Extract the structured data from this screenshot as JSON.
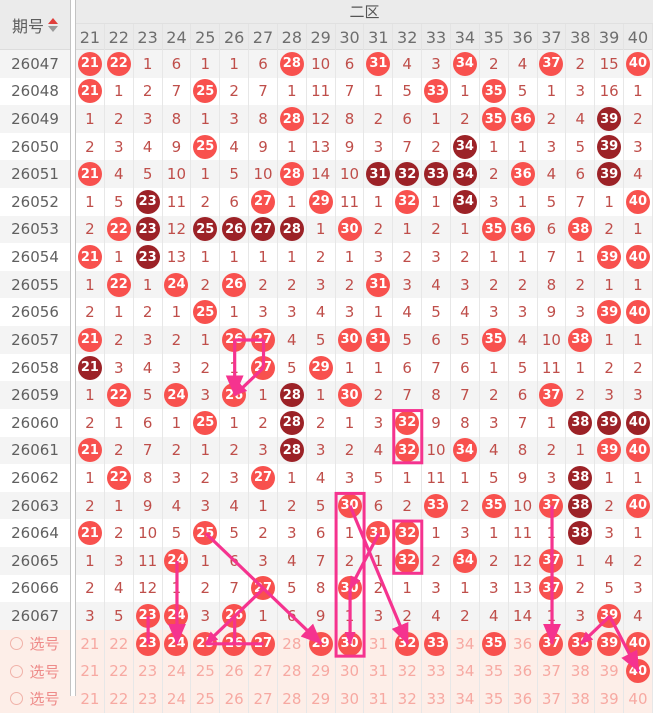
{
  "header": {
    "issue_col_label": "期号",
    "zone_label": "二区",
    "columns": [
      "21",
      "22",
      "23",
      "24",
      "25",
      "26",
      "27",
      "28",
      "29",
      "30",
      "31",
      "32",
      "33",
      "34",
      "35",
      "36",
      "37",
      "38",
      "39",
      "40"
    ]
  },
  "legend_note": "R=hit ball (bright red), D=repeat hot ball (dark red), S=selected pick ball, plain=miss count",
  "rows": [
    {
      "issue": "26047",
      "cells": [
        "R21",
        "R22",
        "1",
        "6",
        "1",
        "1",
        "6",
        "R28",
        "10",
        "6",
        "R31",
        "4",
        "3",
        "R34",
        "2",
        "4",
        "R37",
        "2",
        "15",
        "R40"
      ]
    },
    {
      "issue": "26048",
      "cells": [
        "R21",
        "1",
        "2",
        "7",
        "R25",
        "2",
        "7",
        "1",
        "11",
        "7",
        "1",
        "5",
        "R33",
        "1",
        "R35",
        "5",
        "1",
        "3",
        "16",
        "1"
      ]
    },
    {
      "issue": "26049",
      "cells": [
        "1",
        "2",
        "3",
        "8",
        "1",
        "3",
        "8",
        "R28",
        "12",
        "8",
        "2",
        "6",
        "1",
        "2",
        "R35",
        "R36",
        "2",
        "4",
        "D39",
        "2"
      ]
    },
    {
      "issue": "26050",
      "cells": [
        "2",
        "3",
        "4",
        "9",
        "R25",
        "4",
        "9",
        "1",
        "13",
        "9",
        "3",
        "7",
        "2",
        "D34",
        "1",
        "1",
        "3",
        "5",
        "D39",
        "3"
      ]
    },
    {
      "issue": "26051",
      "cells": [
        "R21",
        "4",
        "5",
        "10",
        "1",
        "5",
        "10",
        "R28",
        "14",
        "10",
        "D31",
        "D32",
        "D33",
        "D34",
        "2",
        "R36",
        "4",
        "6",
        "D39",
        "4"
      ]
    },
    {
      "issue": "26052",
      "cells": [
        "1",
        "5",
        "D23",
        "11",
        "2",
        "6",
        "R27",
        "1",
        "R29",
        "11",
        "1",
        "R32",
        "1",
        "D34",
        "3",
        "1",
        "5",
        "7",
        "1",
        "R40"
      ]
    },
    {
      "issue": "26053",
      "cells": [
        "2",
        "R22",
        "D23",
        "12",
        "D25",
        "D26",
        "D27",
        "D28",
        "1",
        "R30",
        "2",
        "1",
        "2",
        "1",
        "R35",
        "R36",
        "6",
        "R38",
        "2",
        "1"
      ]
    },
    {
      "issue": "26054",
      "cells": [
        "R21",
        "1",
        "D23",
        "13",
        "1",
        "1",
        "1",
        "1",
        "2",
        "1",
        "3",
        "2",
        "3",
        "2",
        "1",
        "1",
        "7",
        "1",
        "R39",
        "R40"
      ]
    },
    {
      "issue": "26055",
      "cells": [
        "1",
        "R22",
        "1",
        "R24",
        "2",
        "R26",
        "2",
        "2",
        "3",
        "2",
        "R31",
        "3",
        "4",
        "3",
        "2",
        "2",
        "8",
        "2",
        "1",
        "1"
      ]
    },
    {
      "issue": "26056",
      "cells": [
        "2",
        "1",
        "2",
        "1",
        "R25",
        "1",
        "3",
        "3",
        "4",
        "3",
        "1",
        "4",
        "5",
        "4",
        "3",
        "3",
        "9",
        "3",
        "R39",
        "R40"
      ]
    },
    {
      "issue": "26057",
      "cells": [
        "R21",
        "2",
        "3",
        "2",
        "1",
        "R26",
        "R27",
        "4",
        "5",
        "R30",
        "R31",
        "5",
        "6",
        "5",
        "R35",
        "4",
        "10",
        "R38",
        "1",
        "1"
      ]
    },
    {
      "issue": "26058",
      "cells": [
        "D21",
        "3",
        "4",
        "3",
        "2",
        "1",
        "R27",
        "5",
        "R29",
        "1",
        "1",
        "6",
        "7",
        "6",
        "1",
        "5",
        "11",
        "1",
        "2",
        "2"
      ]
    },
    {
      "issue": "26059",
      "cells": [
        "1",
        "R22",
        "5",
        "R24",
        "3",
        "R26",
        "1",
        "D28",
        "1",
        "R30",
        "2",
        "7",
        "8",
        "7",
        "2",
        "6",
        "R37",
        "2",
        "3",
        "3"
      ]
    },
    {
      "issue": "26060",
      "cells": [
        "2",
        "1",
        "6",
        "1",
        "R25",
        "1",
        "2",
        "D28",
        "2",
        "1",
        "3",
        "R32",
        "9",
        "8",
        "3",
        "7",
        "1",
        "D38",
        "D39",
        "D40"
      ]
    },
    {
      "issue": "26061",
      "cells": [
        "R21",
        "2",
        "7",
        "2",
        "1",
        "2",
        "3",
        "D28",
        "3",
        "2",
        "4",
        "R32",
        "10",
        "R34",
        "4",
        "8",
        "2",
        "1",
        "R39",
        "R40"
      ]
    },
    {
      "issue": "26062",
      "cells": [
        "1",
        "R22",
        "8",
        "3",
        "2",
        "3",
        "R27",
        "1",
        "4",
        "3",
        "5",
        "1",
        "11",
        "1",
        "5",
        "9",
        "3",
        "D38",
        "1",
        "1"
      ]
    },
    {
      "issue": "26063",
      "cells": [
        "2",
        "1",
        "9",
        "4",
        "3",
        "4",
        "1",
        "2",
        "5",
        "R30",
        "6",
        "2",
        "R33",
        "2",
        "R35",
        "10",
        "R37",
        "D38",
        "2",
        "R40"
      ]
    },
    {
      "issue": "26064",
      "cells": [
        "R21",
        "2",
        "10",
        "5",
        "R25",
        "5",
        "2",
        "3",
        "6",
        "1",
        "R31",
        "R32",
        "1",
        "3",
        "1",
        "11",
        "1",
        "D38",
        "3",
        "1"
      ]
    },
    {
      "issue": "26065",
      "cells": [
        "1",
        "3",
        "11",
        "R24",
        "1",
        "6",
        "3",
        "4",
        "7",
        "2",
        "1",
        "R32",
        "2",
        "R34",
        "2",
        "12",
        "R37",
        "1",
        "4",
        "2"
      ]
    },
    {
      "issue": "26066",
      "cells": [
        "2",
        "4",
        "12",
        "1",
        "2",
        "7",
        "R27",
        "5",
        "8",
        "R30",
        "2",
        "1",
        "3",
        "1",
        "3",
        "13",
        "R37",
        "2",
        "5",
        "3"
      ]
    },
    {
      "issue": "26067",
      "cells": [
        "3",
        "5",
        "R23",
        "R24",
        "3",
        "R26",
        "1",
        "6",
        "9",
        "1",
        "3",
        "2",
        "4",
        "2",
        "4",
        "14",
        "1",
        "3",
        "R39",
        "4"
      ]
    }
  ],
  "select_rows": [
    {
      "key": "sel1",
      "label": "选号",
      "cells": [
        "21",
        "22",
        "S23",
        "S24",
        "S25",
        "S26",
        "S27",
        "28",
        "S29",
        "S30",
        "31",
        "S32",
        "S33",
        "34",
        "S35",
        "36",
        "S37",
        "S38",
        "S39",
        "S40"
      ]
    },
    {
      "key": "sel2",
      "label": "选号",
      "cells": [
        "21",
        "22",
        "23",
        "24",
        "25",
        "26",
        "27",
        "28",
        "29",
        "30",
        "31",
        "32",
        "33",
        "34",
        "35",
        "36",
        "37",
        "38",
        "39",
        "S40"
      ]
    },
    {
      "key": "sel3",
      "label": "选号",
      "cells": [
        "21",
        "22",
        "23",
        "24",
        "25",
        "26",
        "27",
        "28",
        "29",
        "30",
        "31",
        "32",
        "33",
        "34",
        "35",
        "36",
        "37",
        "38",
        "39",
        "40"
      ]
    }
  ],
  "annotations": {
    "color": "#f5338f",
    "items": [
      {
        "type": "line",
        "from": {
          "c": 26,
          "r": "26057"
        },
        "to": {
          "c": 27,
          "r": "26057"
        }
      },
      {
        "type": "line",
        "from": {
          "c": 27,
          "r": "26057"
        },
        "to": {
          "c": 27,
          "r": "26058"
        }
      },
      {
        "type": "arrow",
        "from": {
          "c": 27,
          "r": "26058"
        },
        "to": {
          "c": 26,
          "r": "26059"
        }
      },
      {
        "type": "arrow",
        "from": {
          "c": 26,
          "r": "26057"
        },
        "to": {
          "c": 26,
          "r": "26059"
        },
        "big": true
      },
      {
        "type": "box",
        "col": 32,
        "rowStart": "26060",
        "rowEnd": "26061"
      },
      {
        "type": "box",
        "col": 32,
        "rowStart": "26064",
        "rowEnd": "26065"
      },
      {
        "type": "box",
        "col": 30,
        "rowStart": "26063",
        "rowEnd": "sel1"
      },
      {
        "type": "arrow",
        "from": {
          "c": 37,
          "r": "26063"
        },
        "to": {
          "c": 37,
          "r": "sel1"
        },
        "big": true
      },
      {
        "type": "arrow",
        "from": {
          "c": 25,
          "r": "26064"
        },
        "to": {
          "c": 29,
          "r": "sel1"
        },
        "big": true
      },
      {
        "type": "arrow",
        "from": {
          "c": 27,
          "r": "26066"
        },
        "to": {
          "c": 25,
          "r": "sel1"
        }
      },
      {
        "type": "arrow",
        "from": {
          "c": 24,
          "r": "26065"
        },
        "to": {
          "c": 24,
          "r": "sel1"
        },
        "big": true
      },
      {
        "type": "line",
        "from": {
          "c": 26,
          "r": "26067"
        },
        "to": {
          "c": 26,
          "r": "sel1"
        }
      },
      {
        "type": "line",
        "from": {
          "c": 25,
          "r": "sel1"
        },
        "to": {
          "c": 27,
          "r": "sel1"
        }
      },
      {
        "type": "line",
        "from": {
          "c": 23,
          "r": "26067"
        },
        "to": {
          "c": 23,
          "r": "sel1"
        }
      },
      {
        "type": "arrow",
        "from": {
          "c": 31,
          "r": "26064"
        },
        "to": {
          "c": 30,
          "r": "26066"
        }
      },
      {
        "type": "arrow",
        "from": {
          "c": 30,
          "r": "26063"
        },
        "to": {
          "c": 32,
          "r": "sel1"
        },
        "big": true
      },
      {
        "type": "arrow",
        "from": {
          "c": 30,
          "r": "26066"
        },
        "to": {
          "c": 30,
          "r": "sel1"
        }
      },
      {
        "type": "arrow",
        "from": {
          "c": 39,
          "r": "26067"
        },
        "to": {
          "c": 38,
          "r": "sel1"
        }
      },
      {
        "type": "arrow",
        "from": {
          "c": 39,
          "r": "26067"
        },
        "to": {
          "c": 40,
          "r": "sel2"
        },
        "big": true
      }
    ]
  },
  "colors": {
    "hit_ball": "#f8514e",
    "hot_ball": "#9c2227",
    "miss_text": "#bf4e4a",
    "annotation": "#f5338f",
    "header_bg": "#ebebeb",
    "stripe_bg": "#f4f4f4",
    "pick_row_bg": "#fdeee8",
    "pick_num_text": "#f7a9a2",
    "pick_label_text": "#ee8b89",
    "sort_up": "#e03f3c",
    "sort_down": "#9a9a9a"
  }
}
